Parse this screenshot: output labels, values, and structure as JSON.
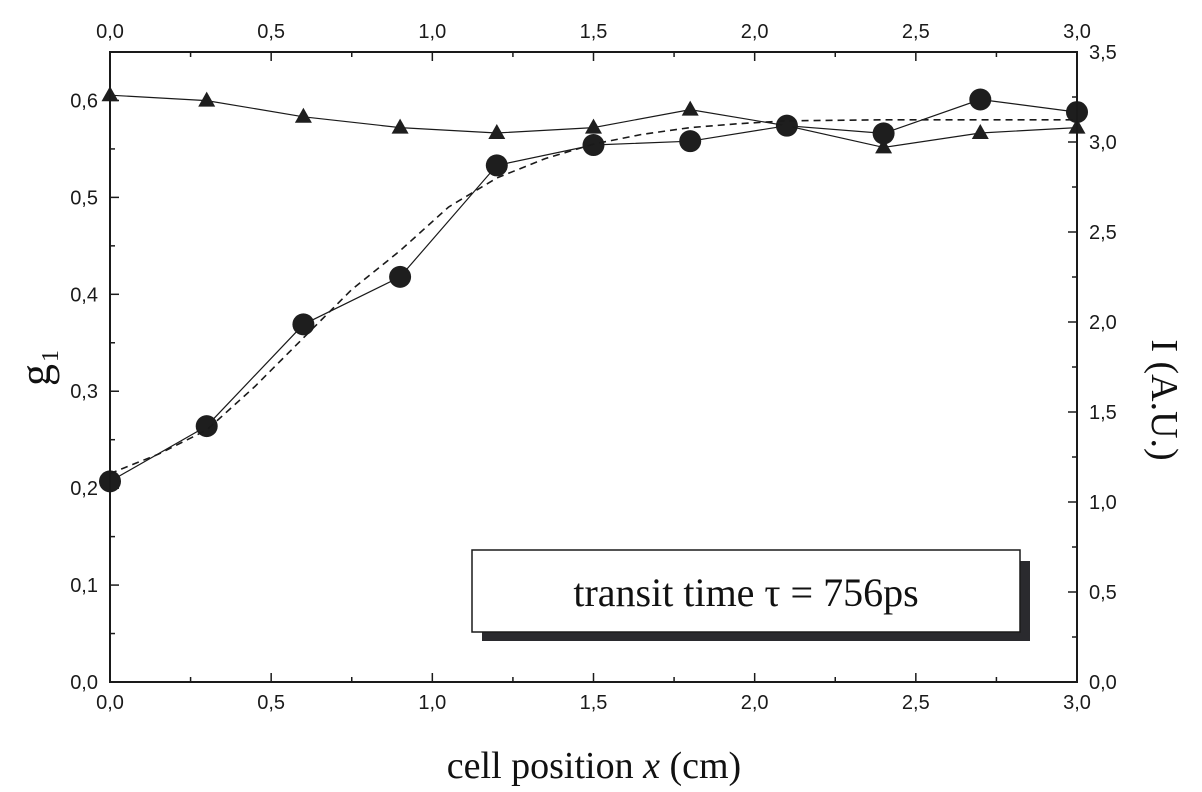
{
  "chart_data": {
    "type": "line",
    "xlabel": "cell position x (cm)",
    "xlabel_prefix": "cell position ",
    "xlabel_var": "x",
    "xlabel_suffix": " (cm)",
    "ylabel_main": "g",
    "ylabel_sub": "1",
    "y2label": "I (A.U.)",
    "xlim": [
      0,
      3.0
    ],
    "ylim": [
      0,
      0.65
    ],
    "y2lim": [
      0,
      3.5
    ],
    "grid": false,
    "x_ticks": [
      0,
      0.5,
      1.0,
      1.5,
      2.0,
      2.5,
      3.0
    ],
    "x_tick_labels": [
      "0,0",
      "0,5",
      "1,0",
      "1,5",
      "2,0",
      "2,5",
      "3,0"
    ],
    "y_ticks": [
      0,
      0.1,
      0.2,
      0.3,
      0.4,
      0.5,
      0.6
    ],
    "y_tick_labels": [
      "0,0",
      "0,1",
      "0,2",
      "0,3",
      "0,4",
      "0,5",
      "0,6"
    ],
    "y2_ticks": [
      0,
      0.5,
      1.0,
      1.5,
      2.0,
      2.5,
      3.0,
      3.5
    ],
    "y2_tick_labels": [
      "0,0",
      "0,5",
      "1,0",
      "1,5",
      "2,0",
      "2,5",
      "3,0",
      "3,5"
    ],
    "annotation": "transit time τ = 756ps",
    "series": [
      {
        "marker": "circle",
        "axis": "left",
        "style": "solid",
        "x": [
          0,
          0.3,
          0.6,
          0.9,
          1.2,
          1.5,
          1.8,
          2.1,
          2.4,
          2.7,
          3.0
        ],
        "y": [
          0.207,
          0.264,
          0.369,
          0.418,
          0.533,
          0.554,
          0.558,
          0.574,
          0.566,
          0.601,
          0.588
        ]
      },
      {
        "marker": "triangle",
        "axis": "right",
        "style": "solid",
        "x": [
          0,
          0.3,
          0.6,
          0.9,
          1.2,
          1.5,
          1.8,
          2.1,
          2.4,
          2.7,
          3.0
        ],
        "y": [
          3.26,
          3.23,
          3.14,
          3.08,
          3.05,
          3.08,
          3.18,
          3.09,
          2.97,
          3.05,
          3.08
        ]
      },
      {
        "marker": "none",
        "axis": "left",
        "style": "dashed",
        "x": [
          0,
          0.15,
          0.3,
          0.45,
          0.6,
          0.75,
          0.9,
          1.05,
          1.2,
          1.35,
          1.5,
          1.65,
          1.8,
          1.95,
          2.1,
          2.4,
          2.7,
          3.0
        ],
        "y": [
          0.215,
          0.235,
          0.26,
          0.305,
          0.355,
          0.405,
          0.445,
          0.49,
          0.52,
          0.54,
          0.555,
          0.565,
          0.572,
          0.576,
          0.579,
          0.58,
          0.58,
          0.58
        ]
      }
    ]
  }
}
